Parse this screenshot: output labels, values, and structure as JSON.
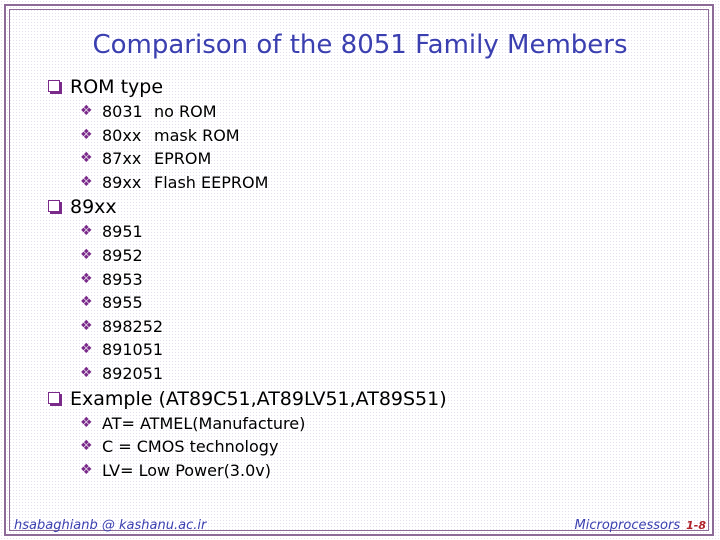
{
  "title": "Comparison of the 8051 Family Members",
  "sections": [
    {
      "heading": "ROM type",
      "items": [
        {
          "code": "8031",
          "desc": "no ROM"
        },
        {
          "code": "80xx",
          "desc": "mask ROM"
        },
        {
          "code": "87xx",
          "desc": "EPROM"
        },
        {
          "code": "89xx",
          "desc": "Flash EEPROM"
        }
      ]
    },
    {
      "heading": "89xx",
      "items": [
        "8951",
        "8952",
        "8953",
        "8955",
        "898252",
        "891051",
        "892051"
      ]
    },
    {
      "heading": "Example (AT89C51,AT89LV51,AT89S51)",
      "items": [
        "AT= ATMEL(Manufacture)",
        "C = CMOS technology",
        "LV= Low Power(3.0v)"
      ]
    }
  ],
  "footer": {
    "author": "hsabaghianb @ kashanu.ac.ir",
    "course": "Microprocessors",
    "page": "1-8"
  },
  "colors": {
    "title": "#3b3fb0",
    "bullet": "#7a2a8a",
    "frame": "#8d6b98",
    "page_number": "#b0202a"
  },
  "icons": {
    "level1_bullet": "square-bullet-icon",
    "level2_bullet": "diamond-bullet-icon"
  }
}
